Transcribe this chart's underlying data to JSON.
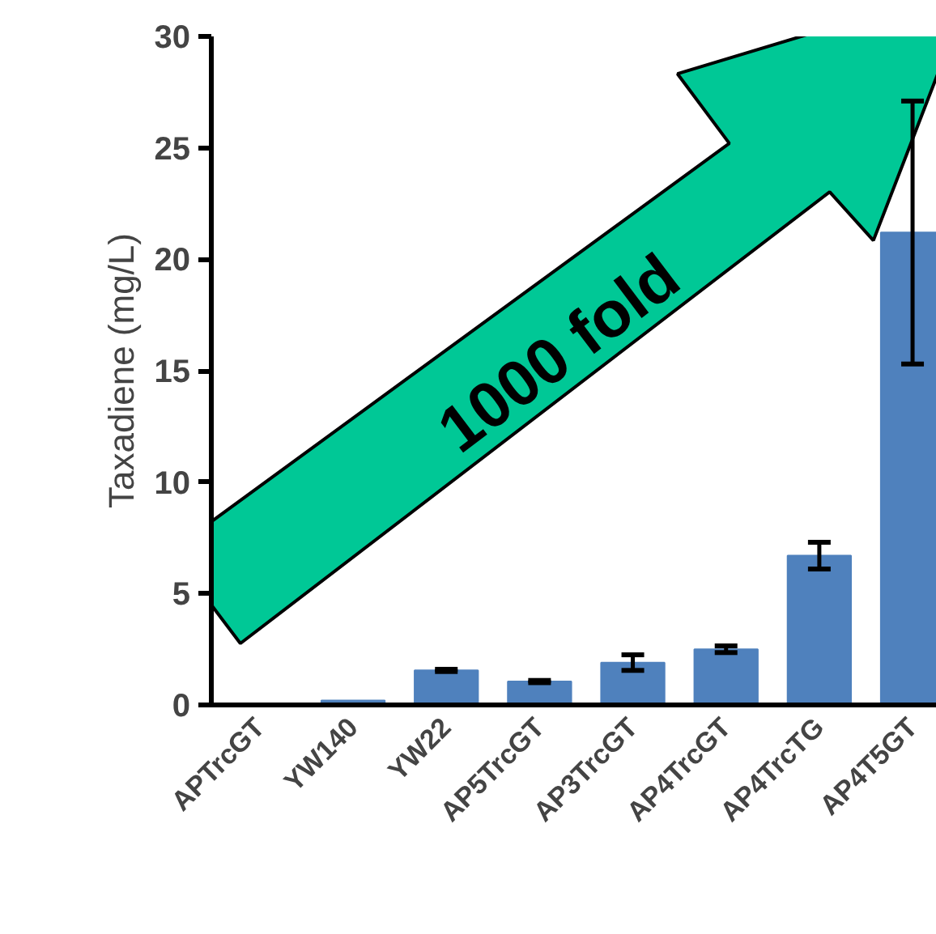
{
  "chart_data": {
    "type": "bar",
    "ylabel": "Taxadiene (mg/L)",
    "categories": [
      "APTrcGT",
      "YW140",
      "YW22",
      "AP5TrcGT",
      "AP3TrcGT",
      "AP4TrcGT",
      "AP4TrcTG",
      "AP4T5GT"
    ],
    "values": [
      0,
      0.2,
      1.55,
      1.05,
      1.9,
      2.5,
      6.7,
      21.2
    ],
    "errors": [
      null,
      null,
      0.05,
      0.05,
      0.35,
      0.15,
      0.6,
      5.9
    ],
    "color": "#4f81bd",
    "ylim": [
      0,
      30
    ],
    "yticks": [
      0,
      5,
      10,
      15,
      20,
      25,
      30
    ],
    "grid": false,
    "annotations": [
      "1000 fold"
    ]
  }
}
